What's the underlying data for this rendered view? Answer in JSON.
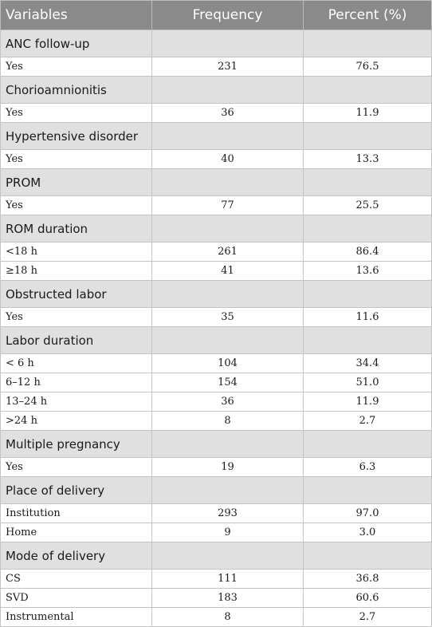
{
  "header": {
    "col1": "Variables",
    "col2": "Frequency",
    "col3": "Percent (%)"
  },
  "sections": [
    {
      "title": "ANC follow-up",
      "rows": [
        {
          "label": "Yes",
          "frequency": "231",
          "percent": "76.5"
        }
      ]
    },
    {
      "title": "Chorioamnionitis",
      "rows": [
        {
          "label": "Yes",
          "frequency": "36",
          "percent": "11.9"
        }
      ]
    },
    {
      "title": "Hypertensive disorder",
      "rows": [
        {
          "label": "Yes",
          "frequency": "40",
          "percent": "13.3"
        }
      ]
    },
    {
      "title": "PROM",
      "rows": [
        {
          "label": "Yes",
          "frequency": "77",
          "percent": "25.5"
        }
      ]
    },
    {
      "title": "ROM duration",
      "rows": [
        {
          "label": "<18 h",
          "frequency": "261",
          "percent": "86.4"
        },
        {
          "label": "≥18 h",
          "frequency": "41",
          "percent": "13.6"
        }
      ]
    },
    {
      "title": "Obstructed labor",
      "rows": [
        {
          "label": "Yes",
          "frequency": "35",
          "percent": "11.6"
        }
      ]
    },
    {
      "title": "Labor duration",
      "rows": [
        {
          "label": "< 6 h",
          "frequency": "104",
          "percent": "34.4"
        },
        {
          "label": "6–12 h",
          "frequency": "154",
          "percent": "51.0"
        },
        {
          "label": "13–24 h",
          "frequency": "36",
          "percent": "11.9"
        },
        {
          "label": ">24 h",
          "frequency": "8",
          "percent": "2.7"
        }
      ]
    },
    {
      "title": "Multiple pregnancy",
      "rows": [
        {
          "label": "Yes",
          "frequency": "19",
          "percent": "6.3"
        }
      ]
    },
    {
      "title": "Place of delivery",
      "rows": [
        {
          "label": "Institution",
          "frequency": "293",
          "percent": "97.0"
        },
        {
          "label": "Home",
          "frequency": "9",
          "percent": "3.0"
        }
      ]
    },
    {
      "title": "Mode of delivery",
      "rows": [
        {
          "label": "CS",
          "frequency": "111",
          "percent": "36.8"
        },
        {
          "label": "SVD",
          "frequency": "183",
          "percent": "60.6"
        },
        {
          "label": "Instrumental",
          "frequency": "8",
          "percent": "2.7"
        }
      ]
    }
  ]
}
